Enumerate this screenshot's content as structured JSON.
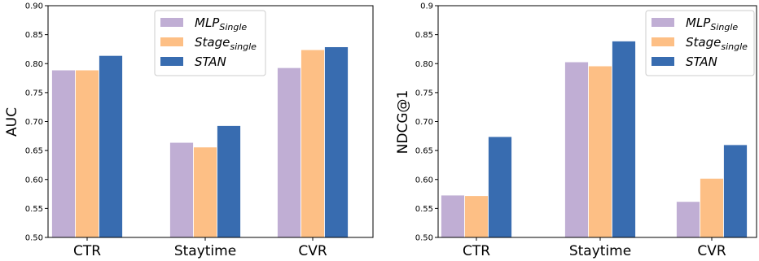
{
  "chart_data": [
    {
      "type": "bar",
      "categories": [
        "CTR",
        "Staytime",
        "CVR"
      ],
      "ylabel": "AUC",
      "ylim": [
        0.5,
        0.9
      ],
      "yticks": [
        "0.50",
        "0.55",
        "0.60",
        "0.65",
        "0.70",
        "0.75",
        "0.80",
        "0.85",
        "0.90"
      ],
      "legend_position": "top-center",
      "grid": false,
      "series": [
        {
          "name": "MLP",
          "name_sub": "Single",
          "color": "#c0aed4",
          "values": [
            0.789,
            0.664,
            0.793
          ]
        },
        {
          "name": "Stage",
          "name_sub": "single",
          "color": "#fdbf85",
          "values": [
            0.789,
            0.656,
            0.824
          ]
        },
        {
          "name": "STAN",
          "name_sub": "",
          "color": "#386cb0",
          "values": [
            0.814,
            0.693,
            0.829
          ]
        }
      ]
    },
    {
      "type": "bar",
      "categories": [
        "CTR",
        "Staytime",
        "CVR"
      ],
      "ylabel": "NDCG@1",
      "ylim": [
        0.5,
        0.9
      ],
      "yticks": [
        "0.50",
        "0.55",
        "0.60",
        "0.65",
        "0.70",
        "0.75",
        "0.80",
        "0.85",
        "0.9"
      ],
      "legend_position": "top-right",
      "grid": false,
      "series": [
        {
          "name": "MLP",
          "name_sub": "Single",
          "color": "#c0aed4",
          "values": [
            0.573,
            0.803,
            0.562
          ]
        },
        {
          "name": "Stage",
          "name_sub": "single",
          "color": "#fdbf85",
          "values": [
            0.572,
            0.796,
            0.602
          ]
        },
        {
          "name": "STAN",
          "name_sub": "",
          "color": "#386cb0",
          "values": [
            0.674,
            0.839,
            0.66
          ]
        }
      ]
    }
  ]
}
